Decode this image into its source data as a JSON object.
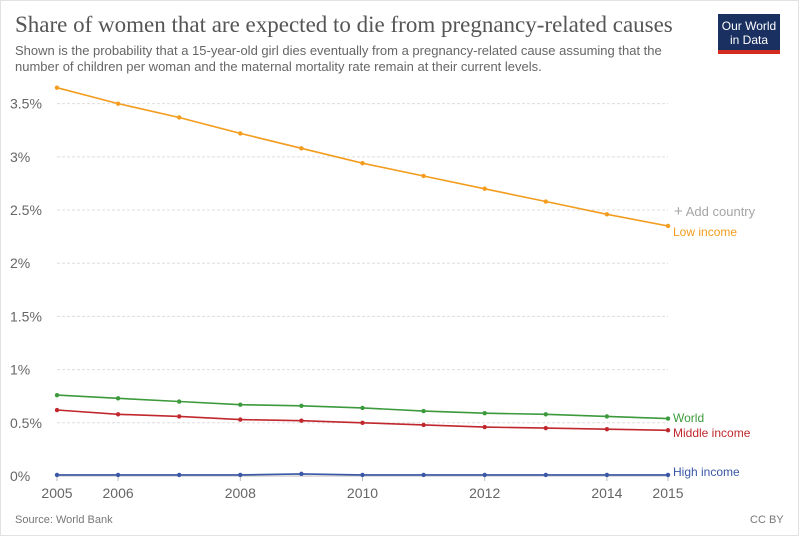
{
  "header": {
    "title": "Share of women that are expected to die from pregnancy-related causes",
    "subtitle": "Shown is the probability that a 15-year-old girl dies eventually from a pregnancy-related cause assuming that the number of children per woman and the maternal mortality rate remain at their current levels."
  },
  "logo": {
    "line1": "Our World",
    "line2": "in Data"
  },
  "controls": {
    "add_country": "Add country"
  },
  "footer": {
    "source": "Source: World Bank",
    "license": "CC BY"
  },
  "chart_data": {
    "type": "line",
    "x": [
      2005,
      2006,
      2007,
      2008,
      2009,
      2010,
      2011,
      2012,
      2013,
      2014,
      2015
    ],
    "xticks": [
      2005,
      2006,
      2008,
      2010,
      2012,
      2014,
      2015
    ],
    "xtick_labels": [
      "2005",
      "2006",
      "2008",
      "2010",
      "2012",
      "2014",
      "2015"
    ],
    "yticks": [
      0,
      0.5,
      1,
      1.5,
      2,
      2.5,
      3,
      3.5
    ],
    "ytick_labels": [
      "0%",
      "0.5%",
      "1%",
      "1.5%",
      "2%",
      "2.5%",
      "3%",
      "3.5%"
    ],
    "ylim": [
      0,
      3.6
    ],
    "xlim": [
      2005,
      2015
    ],
    "grid": true,
    "legend": "labels at line ends, right",
    "series": [
      {
        "name": "Low income",
        "color": "#f39c1e",
        "values": [
          3.65,
          3.5,
          3.37,
          3.22,
          3.08,
          2.94,
          2.82,
          2.7,
          2.58,
          2.46,
          2.35
        ]
      },
      {
        "name": "World",
        "color": "#3c9a3c",
        "values": [
          0.76,
          0.73,
          0.7,
          0.67,
          0.66,
          0.64,
          0.61,
          0.59,
          0.58,
          0.56,
          0.54
        ]
      },
      {
        "name": "Middle income",
        "color": "#c0282d",
        "values": [
          0.62,
          0.58,
          0.56,
          0.53,
          0.52,
          0.5,
          0.48,
          0.46,
          0.45,
          0.44,
          0.43
        ]
      },
      {
        "name": "High income",
        "color": "#3a57a8",
        "values": [
          0.01,
          0.01,
          0.01,
          0.01,
          0.02,
          0.01,
          0.01,
          0.01,
          0.01,
          0.01,
          0.01
        ]
      }
    ]
  }
}
